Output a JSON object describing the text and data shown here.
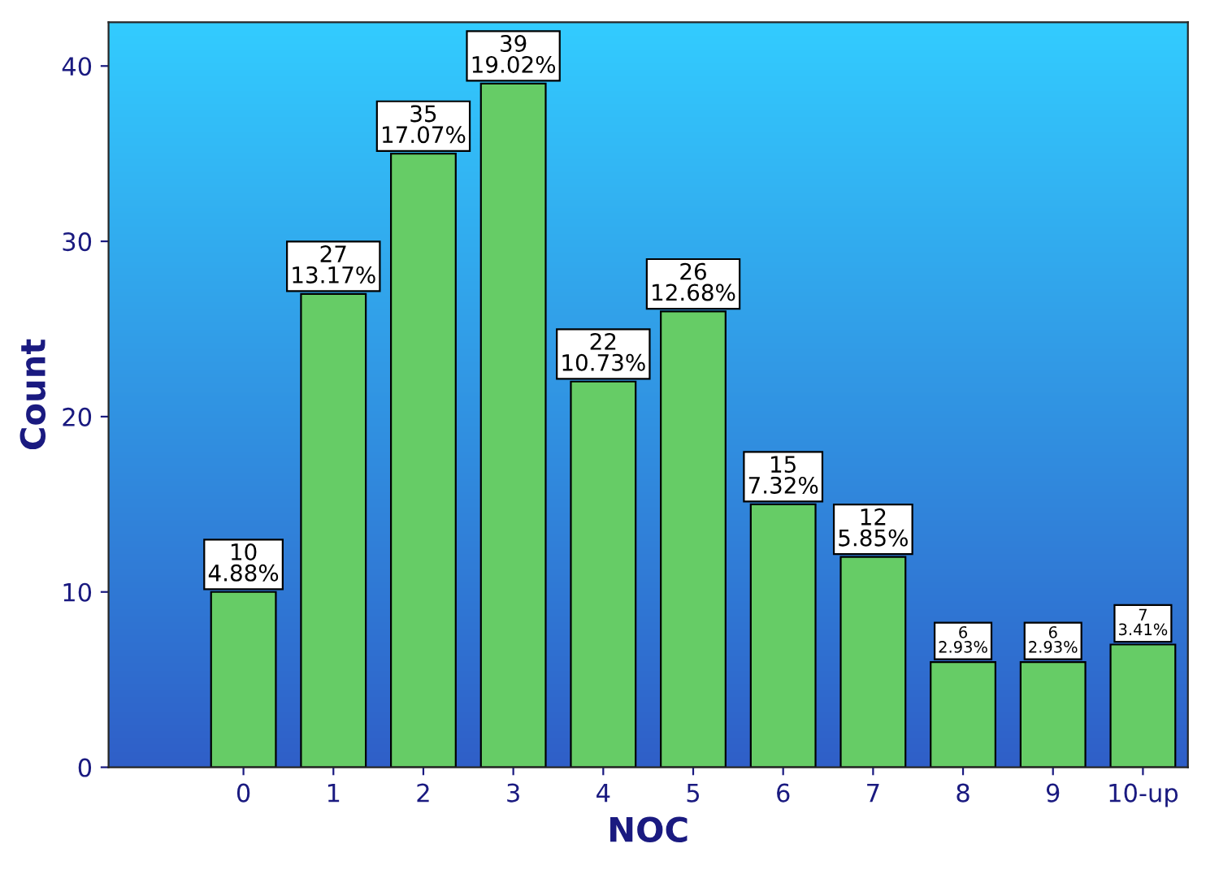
{
  "chart_data": {
    "type": "bar",
    "xlabel": "NOC",
    "ylabel": "Count",
    "categories": [
      "0",
      "1",
      "2",
      "3",
      "4",
      "5",
      "6",
      "7",
      "8",
      "9",
      "10-up"
    ],
    "values": [
      10,
      27,
      35,
      39,
      22,
      26,
      15,
      12,
      6,
      6,
      7
    ],
    "color": "#66cc66",
    "value_labels": [
      "10\n4.88%",
      "27\n13.17%",
      "35\n17.07%",
      "39\n19.02%",
      "22\n10.73%",
      "26\n12.68%",
      "15\n7.32%",
      "12\n5.85%",
      "6\n2.93%",
      "6\n2.93%",
      "7\n3.41%"
    ],
    "ylim": [
      0,
      42.5
    ],
    "yticks": [
      0,
      10,
      20,
      30,
      40
    ],
    "grid": false,
    "legend": false
  }
}
